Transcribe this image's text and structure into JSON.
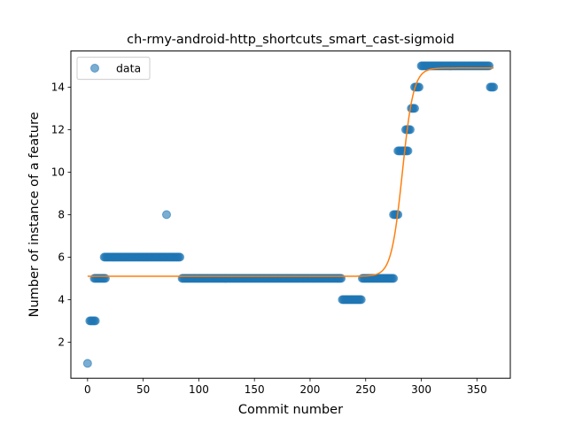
{
  "chart_data": {
    "type": "scatter",
    "title": "ch-rmy-android-http_shortcuts_smart_cast-sigmoid",
    "xlabel": "Commit number",
    "ylabel": "Number of instance of a feature",
    "xlim": [
      -15,
      380
    ],
    "ylim": [
      0.3,
      15.7
    ],
    "xticks": [
      0,
      50,
      100,
      150,
      200,
      250,
      300,
      350
    ],
    "yticks": [
      2,
      4,
      6,
      8,
      10,
      12,
      14
    ],
    "grid": false,
    "legend": {
      "position": "top-left",
      "entries": [
        "data"
      ]
    },
    "colors": {
      "data": "#1f77b4",
      "fit": "#ff7f0e"
    },
    "series": [
      {
        "name": "data",
        "kind": "scatter",
        "segments": [
          {
            "x_start": 0,
            "x_end": 0,
            "y": 1
          },
          {
            "x_start": 2,
            "x_end": 7,
            "y": 3
          },
          {
            "x_start": 6,
            "x_end": 16,
            "y": 5
          },
          {
            "x_start": 15,
            "x_end": 83,
            "y": 6
          },
          {
            "x_start": 71,
            "x_end": 71,
            "y": 8
          },
          {
            "x_start": 85,
            "x_end": 228,
            "y": 5
          },
          {
            "x_start": 229,
            "x_end": 246,
            "y": 4
          },
          {
            "x_start": 247,
            "x_end": 275,
            "y": 5
          },
          {
            "x_start": 275,
            "x_end": 279,
            "y": 8
          },
          {
            "x_start": 279,
            "x_end": 288,
            "y": 11
          },
          {
            "x_start": 286,
            "x_end": 290,
            "y": 12
          },
          {
            "x_start": 291,
            "x_end": 294,
            "y": 13
          },
          {
            "x_start": 294,
            "x_end": 298,
            "y": 14
          },
          {
            "x_start": 300,
            "x_end": 361,
            "y": 15
          },
          {
            "x_start": 362,
            "x_end": 365,
            "y": 14
          }
        ]
      },
      {
        "kind": "line",
        "model": "sigmoid",
        "x_range": [
          0,
          365
        ],
        "lower": 5.1,
        "upper": 14.9,
        "midpoint": 283,
        "steepness": 0.2
      }
    ]
  }
}
